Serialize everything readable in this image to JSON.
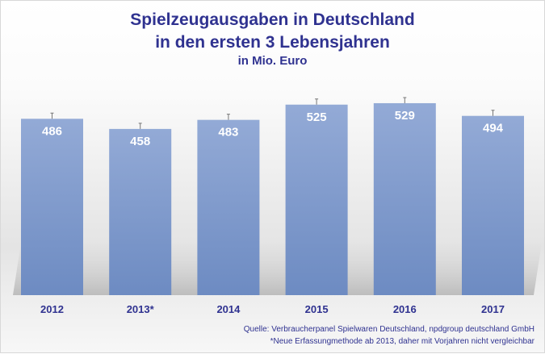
{
  "chart_data": {
    "type": "bar",
    "title": "Spielzeugausgaben in Deutschland",
    "title_line2": "in den ersten 3 Lebensjahren",
    "subtitle": "in Mio. Euro",
    "categories": [
      "2012",
      "2013*",
      "2014",
      "2015",
      "2016",
      "2017"
    ],
    "values": [
      486,
      458,
      483,
      525,
      529,
      494
    ],
    "data_labels": [
      "486",
      "458",
      "483",
      "525",
      "529",
      "494"
    ],
    "ylim": [
      0,
      560
    ],
    "grid": false,
    "error_bars": true,
    "bar_color": "#7f98c9",
    "title_color": "#2f3290",
    "footnotes": [
      "Quelle: Verbraucherpanel Spielwaren Deutschland, npdgroup deutschland GmbH",
      "*Neue Erfassungmethode ab 2013, daher mit Vorjahren nicht vergleichbar"
    ]
  }
}
